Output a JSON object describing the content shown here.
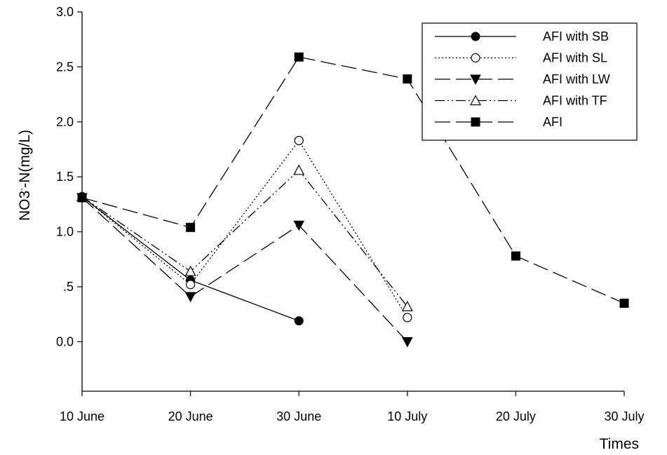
{
  "chart_data": {
    "type": "line",
    "title": "",
    "xlabel": "Times",
    "ylabel_main": "NO3",
    "ylabel_sup": "-",
    "ylabel_rest": "-N(mg/L)",
    "categories": [
      "10 June",
      "20 June",
      "30 June",
      "10 July",
      "20 July",
      "30 July"
    ],
    "ylim": [
      -0.45,
      3.0
    ],
    "yticks": [
      0.0,
      0.5,
      1.0,
      1.5,
      2.0,
      2.5,
      3.0
    ],
    "ytick_labels": [
      "0.0",
      ".5",
      "1.0",
      "1.5",
      "2.0",
      "2.5",
      "3.0"
    ],
    "grid": false,
    "legend_position": "top-right",
    "series": [
      {
        "name": "AFI with SB",
        "marker": "circle-filled",
        "dash": "solid",
        "values": [
          1.32,
          0.56,
          0.19,
          null,
          null,
          null
        ]
      },
      {
        "name": "AFI with SL",
        "marker": "circle-open",
        "dash": "dotted",
        "values": [
          1.32,
          0.52,
          1.83,
          0.22,
          null,
          null
        ]
      },
      {
        "name": "AFI with LW",
        "marker": "triangle-down-filled",
        "dash": "long-dash",
        "values": [
          1.31,
          0.41,
          1.06,
          0.0,
          null,
          null
        ]
      },
      {
        "name": "AFI with TF",
        "marker": "triangle-up-open",
        "dash": "dash-dot-dot",
        "values": [
          1.32,
          0.64,
          1.56,
          0.32,
          null,
          null
        ]
      },
      {
        "name": "AFI",
        "marker": "square-filled",
        "dash": "long-dash",
        "values": [
          1.31,
          1.04,
          2.59,
          2.39,
          0.78,
          0.35
        ]
      }
    ]
  }
}
